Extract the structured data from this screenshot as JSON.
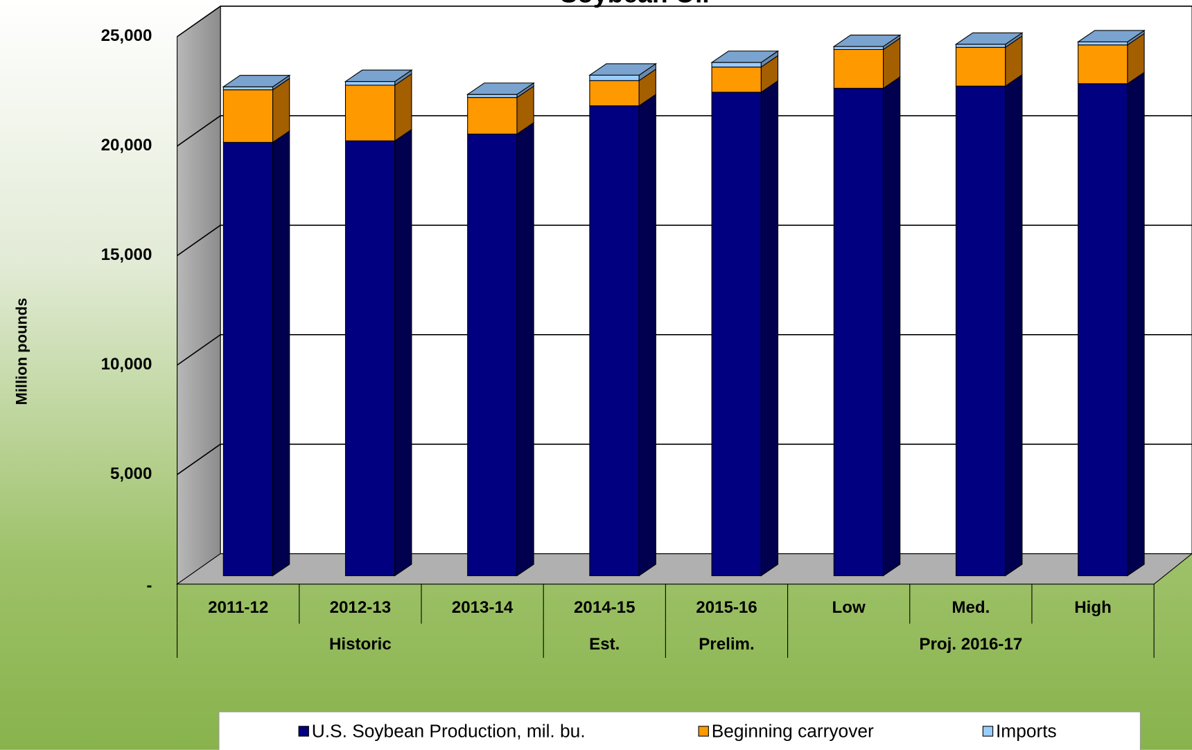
{
  "chart_data": {
    "type": "bar3d-stacked",
    "title": "Soybean Oil",
    "y_label": "Million pounds",
    "categories": [
      "2011-12",
      "2012-13",
      "2013-14",
      "2014-15",
      "2015-16",
      "Low",
      "Med.",
      "High"
    ],
    "groups": [
      {
        "label": "Historic",
        "span": 3
      },
      {
        "label": "Est.",
        "span": 1
      },
      {
        "label": "Prelim.",
        "span": 1
      },
      {
        "label": "Proj. 2016-17",
        "span": 3
      }
    ],
    "series": [
      {
        "name": "U.S. Soybean Production, mil. bu.",
        "color": "#000080",
        "side": "#00004f",
        "values": [
          19790,
          19860,
          20170,
          21460,
          22080,
          22260,
          22360,
          22470
        ]
      },
      {
        "name": "Beginning carryover",
        "color": "#ff9900",
        "side": "#a35f00",
        "values": [
          2400,
          2540,
          1670,
          1150,
          1150,
          1770,
          1770,
          1770
        ]
      },
      {
        "name": "Imports",
        "color": "#99ccff",
        "side": "#6889ad",
        "values": [
          140,
          170,
          140,
          250,
          210,
          140,
          140,
          140
        ]
      }
    ],
    "top_color": "#7aa3cf",
    "ylim": [
      0,
      25000
    ],
    "yticks": [
      {
        "value": 0,
        "label": "-"
      },
      {
        "value": 5000,
        "label": "5,000"
      },
      {
        "value": 10000,
        "label": "10,000"
      },
      {
        "value": 15000,
        "label": "15,000"
      },
      {
        "value": 20000,
        "label": "20,000"
      },
      {
        "value": 25000,
        "label": "25,000"
      }
    ],
    "grid": true,
    "legend": "bottom"
  }
}
